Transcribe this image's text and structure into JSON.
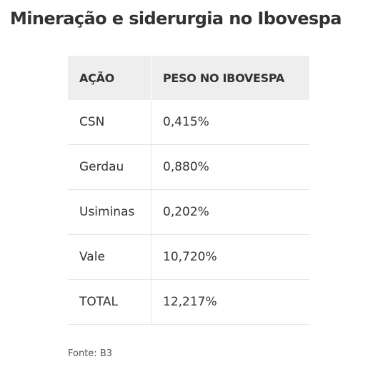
{
  "header": {
    "title": "Mineração e siderurgia no Ibovespa"
  },
  "table": {
    "columns": [
      "AÇÃO",
      "PESO NO IBOVESPA"
    ],
    "rows": [
      [
        "CSN",
        "0,415%"
      ],
      [
        "Gerdau",
        "0,880%"
      ],
      [
        "Usiminas",
        "0,202%"
      ],
      [
        "Vale",
        "10,720%"
      ],
      [
        "TOTAL",
        "12,217%"
      ]
    ]
  },
  "footer": {
    "source": "Fonte: B3"
  }
}
